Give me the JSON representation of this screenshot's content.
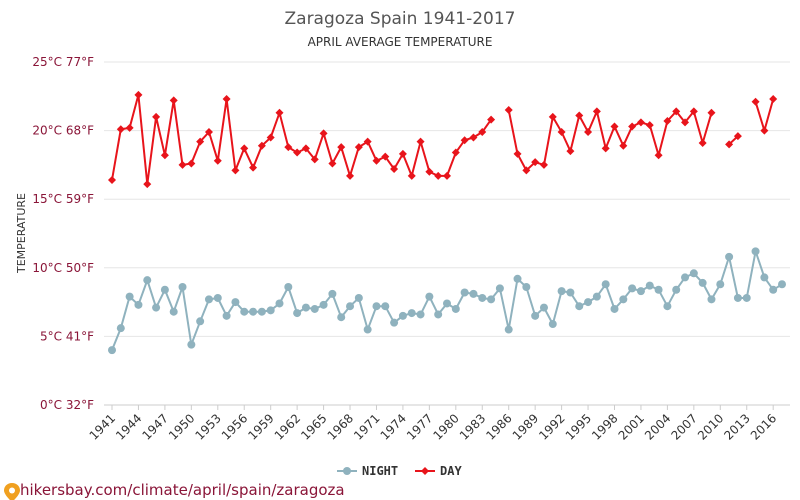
{
  "chart_data": {
    "type": "line",
    "title": "Zaragoza Spain 1941-2017",
    "subtitle": "APRIL AVERAGE TEMPERATURE",
    "ylabel": "TEMPERATURE",
    "xlabel": "",
    "ylim": [
      0,
      25
    ],
    "xlim": [
      1941,
      2017
    ],
    "y_ticks": [
      {
        "value": 0,
        "label": "0°C 32°F"
      },
      {
        "value": 5,
        "label": "5°C 41°F"
      },
      {
        "value": 10,
        "label": "10°C 50°F"
      },
      {
        "value": 15,
        "label": "15°C 59°F"
      },
      {
        "value": 20,
        "label": "20°C 68°F"
      },
      {
        "value": 25,
        "label": "25°C 77°F"
      }
    ],
    "x_ticks": [
      1941,
      1944,
      1947,
      1950,
      1953,
      1956,
      1959,
      1962,
      1965,
      1968,
      1971,
      1974,
      1977,
      1980,
      1983,
      1986,
      1989,
      1992,
      1995,
      1998,
      2001,
      2004,
      2007,
      2010,
      2013,
      2016
    ],
    "grid": true,
    "legend_position": "bottom",
    "series": [
      {
        "name": "NIGHT",
        "color": "#8fb2be",
        "marker": "circle",
        "x": [
          1941,
          1942,
          1943,
          1944,
          1945,
          1946,
          1947,
          1948,
          1949,
          1950,
          1951,
          1952,
          1953,
          1954,
          1955,
          1956,
          1957,
          1958,
          1959,
          1960,
          1961,
          1962,
          1963,
          1964,
          1965,
          1966,
          1967,
          1968,
          1969,
          1970,
          1971,
          1972,
          1973,
          1974,
          1975,
          1976,
          1977,
          1978,
          1979,
          1980,
          1981,
          1982,
          1983,
          1984,
          1985,
          1986,
          1987,
          1988,
          1989,
          1990,
          1991,
          1992,
          1993,
          1994,
          1995,
          1996,
          1997,
          1998,
          1999,
          2000,
          2001,
          2002,
          2003,
          2004,
          2005,
          2006,
          2007,
          2008,
          2009,
          2010,
          2011,
          2012,
          2013,
          2014,
          2015,
          2016,
          2017
        ],
        "values": [
          4.0,
          5.6,
          7.9,
          7.3,
          9.1,
          7.1,
          8.4,
          6.8,
          8.6,
          4.4,
          6.1,
          7.7,
          7.8,
          6.5,
          7.5,
          6.8,
          6.8,
          6.8,
          6.9,
          7.4,
          8.6,
          6.7,
          7.1,
          7.0,
          7.3,
          8.1,
          6.4,
          7.2,
          7.8,
          5.5,
          7.2,
          7.2,
          6.0,
          6.5,
          6.7,
          6.6,
          7.9,
          6.6,
          7.4,
          7.0,
          8.2,
          8.1,
          7.8,
          7.7,
          8.5,
          5.5,
          9.2,
          8.6,
          6.5,
          7.1,
          5.9,
          8.3,
          8.2,
          7.2,
          7.5,
          7.9,
          8.8,
          7.0,
          7.7,
          8.5,
          8.3,
          8.7,
          8.4,
          7.2,
          8.4,
          9.3,
          9.6,
          8.9,
          7.7,
          8.8,
          10.8,
          7.8,
          7.8,
          11.2,
          9.3,
          8.4,
          8.8
        ]
      },
      {
        "name": "DAY",
        "color": "#e8141b",
        "marker": "diamond",
        "x": [
          1941,
          1942,
          1943,
          1944,
          1945,
          1946,
          1947,
          1948,
          1949,
          1950,
          1951,
          1952,
          1953,
          1954,
          1955,
          1956,
          1957,
          1958,
          1959,
          1960,
          1961,
          1962,
          1963,
          1964,
          1965,
          1966,
          1967,
          1968,
          1969,
          1970,
          1971,
          1972,
          1973,
          1974,
          1975,
          1976,
          1977,
          1978,
          1979,
          1980,
          1981,
          1982,
          1983,
          1984,
          1985,
          1986,
          1987,
          1988,
          1989,
          1990,
          1991,
          1992,
          1993,
          1994,
          1995,
          1996,
          1997,
          1998,
          1999,
          2000,
          2001,
          2002,
          2003,
          2004,
          2005,
          2006,
          2007,
          2008,
          2009,
          2010,
          2011,
          2012,
          2013,
          2014,
          2015,
          2016,
          2017
        ],
        "values": [
          16.4,
          20.1,
          20.2,
          22.6,
          16.1,
          21.0,
          18.2,
          22.2,
          17.5,
          17.6,
          19.2,
          19.9,
          17.8,
          22.3,
          17.1,
          18.7,
          17.3,
          18.9,
          19.5,
          21.3,
          18.8,
          18.4,
          18.7,
          17.9,
          19.8,
          17.6,
          18.8,
          16.7,
          18.8,
          19.2,
          17.8,
          18.1,
          17.2,
          18.3,
          16.7,
          19.2,
          17.0,
          16.7,
          16.7,
          18.4,
          19.3,
          19.5,
          19.9,
          20.8,
          null,
          21.5,
          18.3,
          17.1,
          17.7,
          17.5,
          21.0,
          19.9,
          18.5,
          21.1,
          19.9,
          21.4,
          18.7,
          20.3,
          18.9,
          20.3,
          20.6,
          20.4,
          18.2,
          20.7,
          21.4,
          20.6,
          21.4,
          19.1,
          21.3,
          null,
          19.0,
          19.6,
          null,
          22.1,
          20.0,
          22.3,
          null
        ]
      }
    ]
  },
  "source_text": "hikersbay.com/climate/april/spain/zaragoza"
}
